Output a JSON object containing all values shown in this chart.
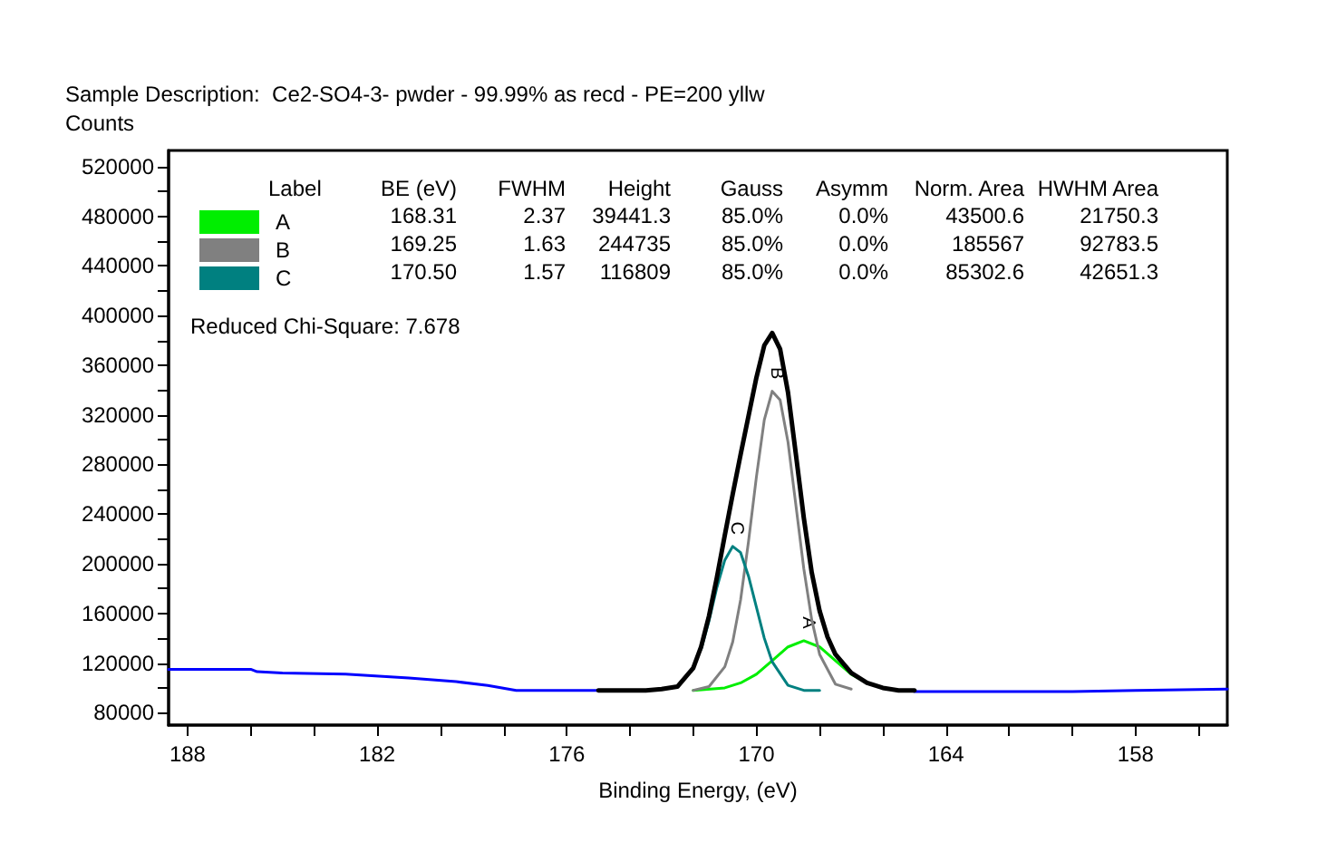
{
  "chart_data": {
    "type": "line",
    "title": "Sample Description:  Ce2-SO4-3- pwder - 99.99% as recd - PE=200 yllw",
    "ylabel": "Counts",
    "xlabel": "Binding Energy, (eV)",
    "xlim": [
      188.6,
      155.1
    ],
    "xticks": [
      188,
      {
        "value": 186,
        "label": null
      },
      {
        "value": 184,
        "label": null
      },
      182,
      {
        "value": 180,
        "label": null
      },
      {
        "value": 178,
        "label": null
      },
      176,
      {
        "value": 174,
        "label": null
      },
      {
        "value": 172,
        "label": null
      },
      170,
      {
        "value": 168,
        "label": null
      },
      {
        "value": 166,
        "label": null
      },
      164,
      {
        "value": 162,
        "label": null
      },
      {
        "value": 160,
        "label": null
      },
      158,
      {
        "value": 156,
        "label": null
      }
    ],
    "ylim": [
      70000,
      533000
    ],
    "yticks": [
      80000,
      {
        "value": 100000,
        "label": null
      },
      120000,
      {
        "value": 140000,
        "label": null
      },
      160000,
      {
        "value": 180000,
        "label": null
      },
      200000,
      {
        "value": 220000,
        "label": null
      },
      240000,
      {
        "value": 260000,
        "label": null
      },
      280000,
      {
        "value": 300000,
        "label": null
      },
      320000,
      {
        "value": 340000,
        "label": null
      },
      360000,
      {
        "value": 380000,
        "label": null
      },
      400000,
      {
        "value": 420000,
        "label": null
      },
      440000,
      {
        "value": 460000,
        "label": null
      },
      480000,
      {
        "value": 500000,
        "label": null
      },
      520000
    ],
    "grid": false,
    "legend": "top left",
    "marker": "none",
    "series": [
      {
        "color": "#0000ff",
        "x": [
          188.6,
          186.0,
          185.8,
          185.0,
          183.0,
          181.0,
          179.5,
          178.5,
          177.6,
          176.0,
          175.0,
          170.0,
          165.0,
          164.0,
          160.0,
          158.0,
          155.1
        ],
        "values": [
          115000,
          115000,
          113000,
          112000,
          111000,
          108000,
          105000,
          102000,
          98000,
          98000,
          98000,
          null,
          97000,
          97000,
          97000,
          98000,
          99000
        ]
      },
      {
        "color": "#000000",
        "x": [
          175.0,
          174.0,
          173.5,
          173.0,
          172.5,
          172.0,
          171.75,
          171.5,
          171.25,
          171.0,
          170.75,
          170.5,
          170.25,
          170.0,
          169.75,
          169.5,
          169.25,
          169.0,
          168.75,
          168.5,
          168.25,
          168.0,
          167.75,
          167.5,
          167.0,
          166.5,
          166.0,
          165.5,
          165.0
        ],
        "values": [
          98000,
          98000,
          98000,
          99000,
          101000,
          116000,
          133000,
          158000,
          189000,
          223000,
          256000,
          288000,
          319000,
          350000,
          376000,
          386000,
          373000,
          338000,
          288000,
          237000,
          193000,
          162000,
          141000,
          127000,
          112000,
          104000,
          100000,
          98000,
          98000
        ]
      },
      {
        "name": "A",
        "color": "#00ee00",
        "x": [
          172.0,
          171.0,
          170.5,
          170.0,
          169.5,
          169.0,
          168.5,
          168.0,
          167.5,
          167.0,
          166.5
        ],
        "values": [
          98000,
          100000,
          104000,
          111000,
          122000,
          133000,
          138000,
          133000,
          122000,
          111000,
          104000
        ]
      },
      {
        "name": "B",
        "color": "#808080",
        "x": [
          172.0,
          171.5,
          171.0,
          170.75,
          170.5,
          170.25,
          170.0,
          169.75,
          169.5,
          169.25,
          169.0,
          168.75,
          168.5,
          168.25,
          168.0,
          167.5,
          167.0
        ],
        "values": [
          98000,
          101000,
          117000,
          137000,
          171000,
          218000,
          270000,
          316000,
          339000,
          332000,
          298000,
          247000,
          196000,
          155000,
          127000,
          103000,
          99000
        ]
      },
      {
        "name": "C",
        "color": "#008080",
        "x": [
          171.75,
          171.5,
          171.25,
          171.0,
          170.75,
          170.5,
          170.25,
          170.0,
          169.75,
          169.5,
          169.0,
          168.5,
          168.0
        ],
        "values": [
          131000,
          154000,
          181000,
          203000,
          214000,
          209000,
          190000,
          165000,
          140000,
          121000,
          102000,
          98000,
          98000
        ]
      }
    ],
    "annotations": [
      "Label",
      "BE (eV)",
      "FWHM",
      "Height",
      "Gauss",
      "Asymm",
      "Norm. Area",
      "HWHM Area",
      "168.31",
      "2.37",
      "39441.3",
      "85.0%",
      "0.0%",
      "43500.6",
      "21750.3",
      "169.25",
      "1.63",
      "244735",
      "85.0%",
      "0.0%",
      "185567",
      "92783.5",
      "170.50",
      "1.57",
      "116809",
      "85.0%",
      "0.0%",
      "85302.6",
      "42651.3",
      "Reduced Chi-Square: 7.678",
      {
        "text": "A",
        "x": 168.5,
        "y": 138000
      },
      {
        "text": "B",
        "x": 169.5,
        "y": 339000
      },
      {
        "text": "C",
        "x": 170.75,
        "y": 214000
      }
    ]
  }
}
